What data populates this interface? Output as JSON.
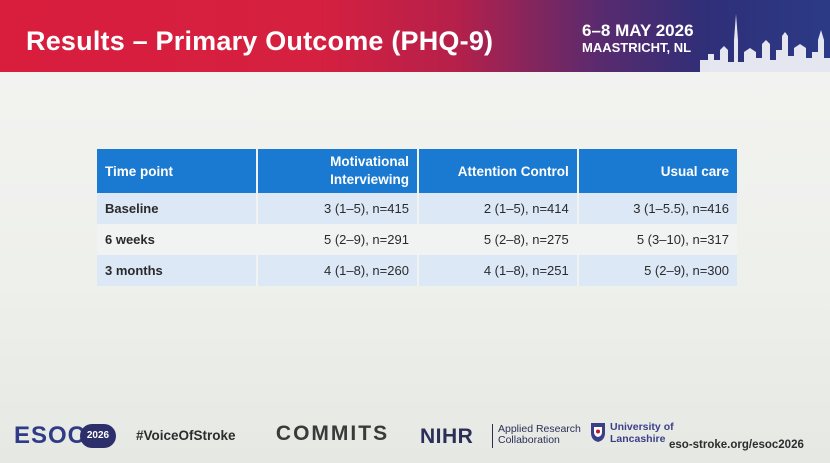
{
  "header": {
    "title": "Results – Primary Outcome (PHQ-9)",
    "event_date": "6–8 MAY 2026",
    "event_city": "MAASTRICHT, NL",
    "colors": {
      "red": "#d81d3d",
      "navy": "#2c3a86"
    }
  },
  "table": {
    "columns": [
      "Time point",
      "Motivational Interviewing",
      "Attention Control",
      "Usual care"
    ],
    "rows": [
      [
        "Baseline",
        "3 (1–5), n=415",
        "2 (1–5), n=414",
        "3 (1–5.5), n=416"
      ],
      [
        "6 weeks",
        "5 (2–9), n=291",
        "5 (2–8), n=275",
        "5 (3–10), n=317"
      ],
      [
        "3 months",
        "4 (1–8), n=260",
        "4 (1–8), n=251",
        "5 (2–9), n=300"
      ]
    ],
    "header_color": "#1a7ad1"
  },
  "footer": {
    "esoc_logo": "ESOC",
    "esoc_year": "2026",
    "hashtag": "#VoiceOfStroke",
    "commits": "COMMITS",
    "nihr": "NIHR",
    "arc_line1": "Applied Research",
    "arc_line2": "Collaboration",
    "lancs_line1": "University of",
    "lancs_line2": "Lancashire",
    "url": "eso-stroke.org/esoc2026"
  }
}
